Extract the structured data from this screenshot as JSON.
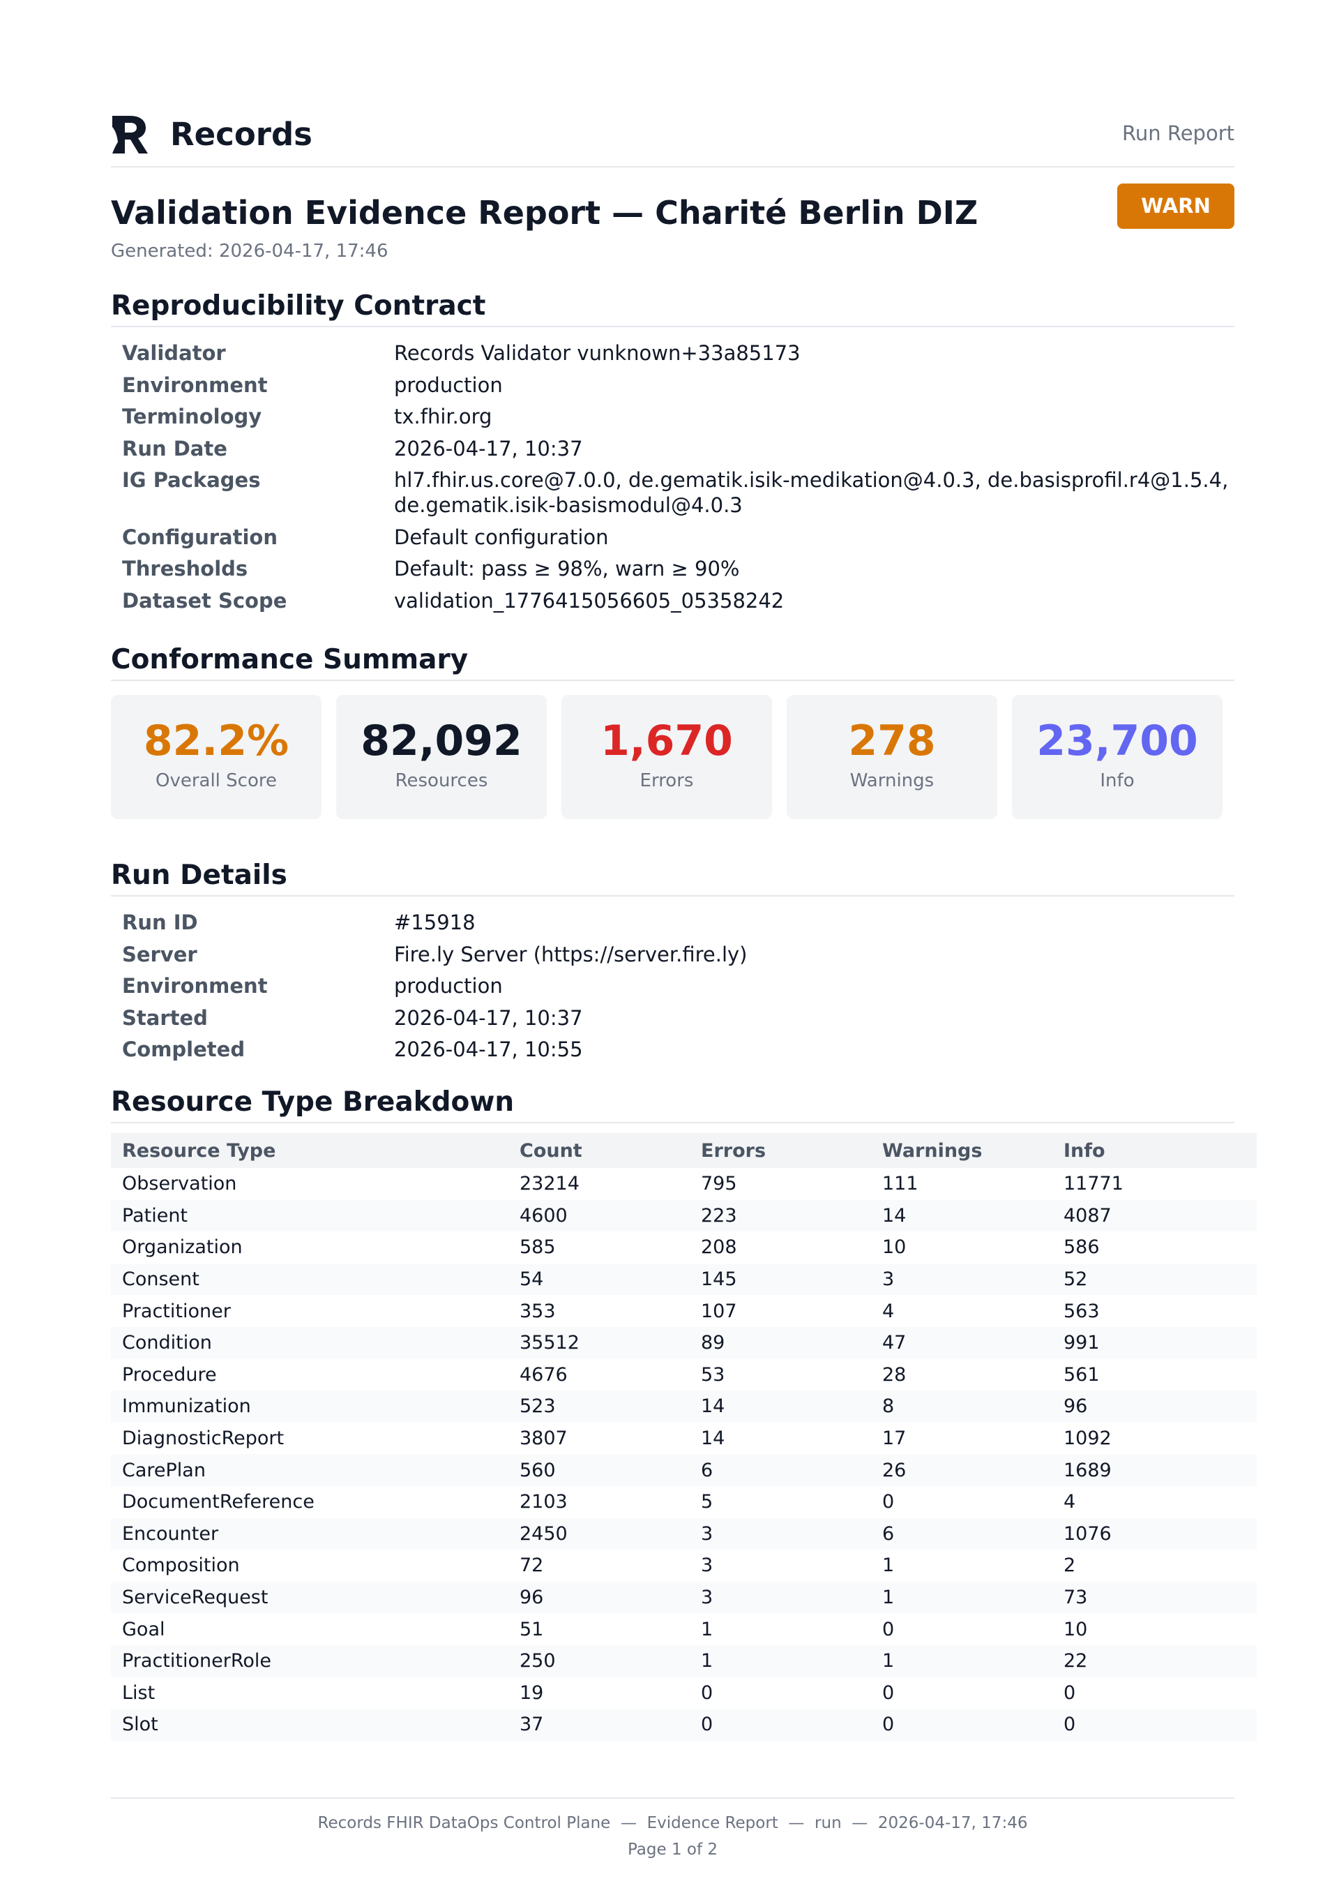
{
  "header": {
    "brand": "Records",
    "right": "Run Report"
  },
  "title": "Validation Evidence Report — Charité Berlin DIZ",
  "generated": "Generated: 2026-04-17, 17:46",
  "status": "WARN",
  "reproducibility": {
    "heading": "Reproducibility Contract",
    "rows": [
      [
        "Validator",
        "Records Validator vunknown+33a85173"
      ],
      [
        "Environment",
        "production"
      ],
      [
        "Terminology",
        "tx.fhir.org"
      ],
      [
        "Run Date",
        "2026-04-17, 10:37"
      ],
      [
        "IG Packages",
        "hl7.fhir.us.core@7.0.0, de.gematik.isik-medikation@4.0.3, de.basisprofil.r4@1.5.4, de.gematik.isik-basismodul@4.0.3"
      ],
      [
        "Configuration",
        "Default configuration"
      ],
      [
        "Thresholds",
        "Default: pass ≥ 98%, warn ≥ 90%"
      ],
      [
        "Dataset Scope",
        "validation_1776415056605_05358242"
      ]
    ]
  },
  "summary": {
    "heading": "Conformance Summary",
    "cards": [
      {
        "value": "82.2%",
        "label": "Overall Score"
      },
      {
        "value": "82,092",
        "label": "Resources"
      },
      {
        "value": "1,670",
        "label": "Errors"
      },
      {
        "value": "278",
        "label": "Warnings"
      },
      {
        "value": "23,700",
        "label": "Info"
      }
    ]
  },
  "run_details": {
    "heading": "Run Details",
    "rows": [
      [
        "Run ID",
        "#15918"
      ],
      [
        "Server",
        "Fire.ly Server (https://server.fire.ly)"
      ],
      [
        "Environment",
        "production"
      ],
      [
        "Started",
        "2026-04-17, 10:37"
      ],
      [
        "Completed",
        "2026-04-17, 10:55"
      ]
    ]
  },
  "breakdown": {
    "heading": "Resource Type Breakdown",
    "columns": [
      "Resource Type",
      "Count",
      "Errors",
      "Warnings",
      "Info"
    ],
    "rows": [
      [
        "Observation",
        23214,
        795,
        111,
        11771
      ],
      [
        "Patient",
        4600,
        223,
        14,
        4087
      ],
      [
        "Organization",
        585,
        208,
        10,
        586
      ],
      [
        "Consent",
        54,
        145,
        3,
        52
      ],
      [
        "Practitioner",
        353,
        107,
        4,
        563
      ],
      [
        "Condition",
        35512,
        89,
        47,
        991
      ],
      [
        "Procedure",
        4676,
        53,
        28,
        561
      ],
      [
        "Immunization",
        523,
        14,
        8,
        96
      ],
      [
        "DiagnosticReport",
        3807,
        14,
        17,
        1092
      ],
      [
        "CarePlan",
        560,
        6,
        26,
        1689
      ],
      [
        "DocumentReference",
        2103,
        5,
        0,
        4
      ],
      [
        "Encounter",
        2450,
        3,
        6,
        1076
      ],
      [
        "Composition",
        72,
        3,
        1,
        2
      ],
      [
        "ServiceRequest",
        96,
        3,
        1,
        73
      ],
      [
        "Goal",
        51,
        1,
        0,
        10
      ],
      [
        "PractitionerRole",
        250,
        1,
        1,
        22
      ],
      [
        "List",
        19,
        0,
        0,
        0
      ],
      [
        "Slot",
        37,
        0,
        0,
        0
      ]
    ]
  },
  "footer": {
    "line": "Records FHIR DataOps Control Plane  —  Evidence Report  —  run  —  2026-04-17, 17:46",
    "page": "Page 1 of 2"
  }
}
